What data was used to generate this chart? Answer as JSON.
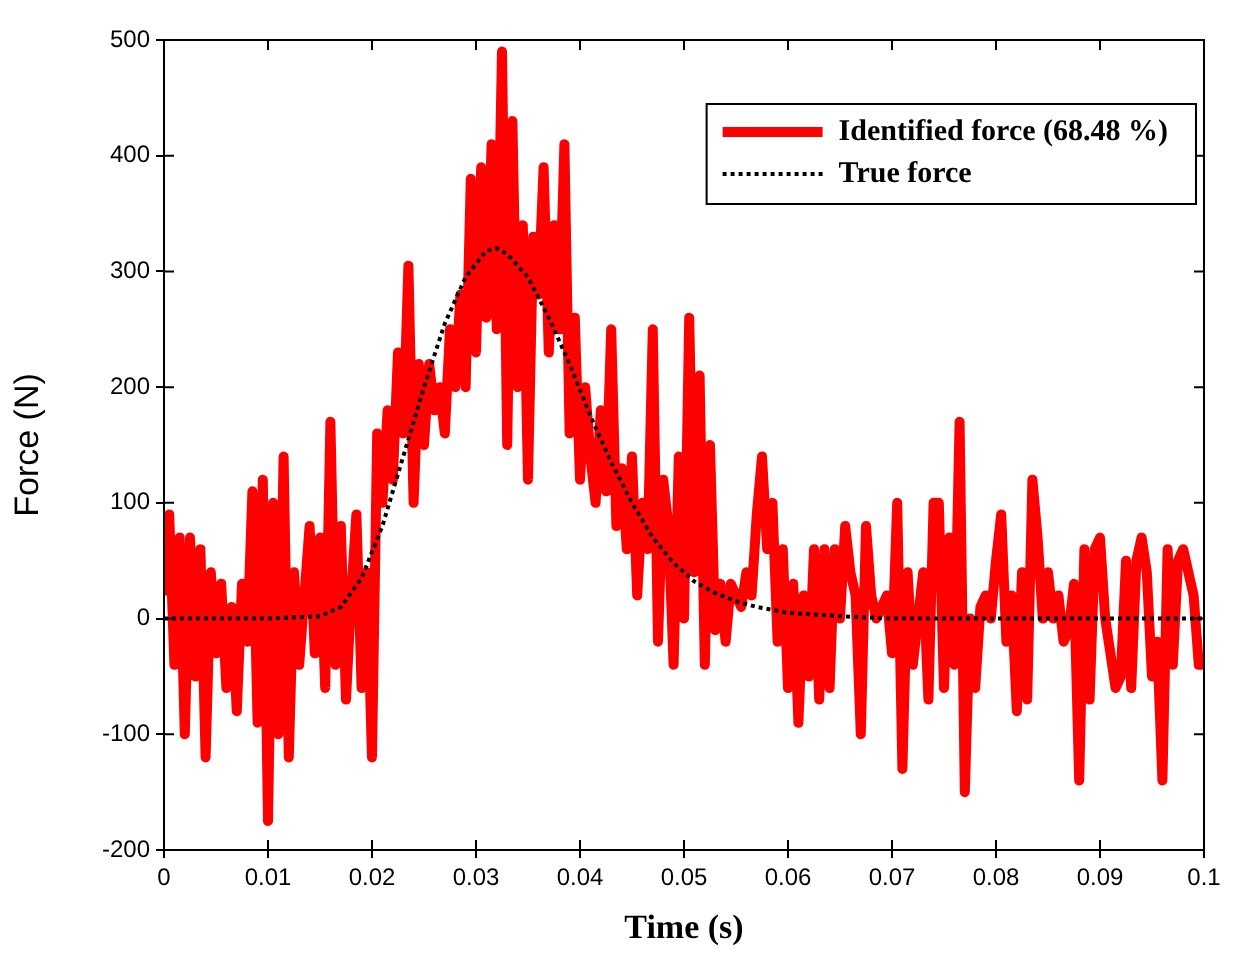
{
  "chart_data": {
    "type": "line",
    "xlabel": "Time (s)",
    "ylabel": "Force (N)",
    "legend": "top right",
    "xlim": [
      0,
      0.1
    ],
    "xticks": [
      0,
      0.01,
      0.02,
      0.03,
      0.04,
      0.05,
      0.06,
      0.07,
      0.08,
      0.09,
      0.1
    ],
    "ylim": [
      -200,
      500
    ],
    "yticks": [
      -200,
      -100,
      0,
      100,
      200,
      300,
      400,
      500
    ],
    "series": [
      {
        "name": "Identified force (68.48 %)",
        "color": "#ff0000",
        "line_style": "solid",
        "x": [
          0,
          0.0005,
          0.001,
          0.0015,
          0.002,
          0.0025,
          0.003,
          0.0035,
          0.004,
          0.0045,
          0.005,
          0.0055,
          0.006,
          0.0065,
          0.007,
          0.0075,
          0.008,
          0.0085,
          0.009,
          0.0095,
          0.01,
          0.0105,
          0.011,
          0.0115,
          0.012,
          0.0125,
          0.013,
          0.0135,
          0.014,
          0.0145,
          0.015,
          0.0155,
          0.016,
          0.0165,
          0.017,
          0.0175,
          0.018,
          0.0185,
          0.019,
          0.0195,
          0.02,
          0.0205,
          0.021,
          0.0215,
          0.022,
          0.0225,
          0.023,
          0.0235,
          0.024,
          0.0245,
          0.025,
          0.0255,
          0.026,
          0.0265,
          0.027,
          0.0275,
          0.028,
          0.0285,
          0.029,
          0.0295,
          0.03,
          0.0305,
          0.031,
          0.0315,
          0.032,
          0.0325,
          0.033,
          0.0335,
          0.034,
          0.0345,
          0.035,
          0.0355,
          0.036,
          0.0365,
          0.037,
          0.0375,
          0.038,
          0.0385,
          0.039,
          0.0395,
          0.04,
          0.0405,
          0.041,
          0.0415,
          0.042,
          0.0425,
          0.043,
          0.0435,
          0.044,
          0.0445,
          0.045,
          0.0455,
          0.046,
          0.0465,
          0.047,
          0.0475,
          0.048,
          0.0485,
          0.049,
          0.0495,
          0.05,
          0.0505,
          0.051,
          0.0515,
          0.052,
          0.0525,
          0.053,
          0.0535,
          0.054,
          0.0545,
          0.055,
          0.0555,
          0.056,
          0.0565,
          0.057,
          0.0575,
          0.058,
          0.0585,
          0.059,
          0.0595,
          0.06,
          0.0605,
          0.061,
          0.0615,
          0.062,
          0.0625,
          0.063,
          0.0635,
          0.064,
          0.0645,
          0.065,
          0.0655,
          0.066,
          0.0665,
          0.067,
          0.0675,
          0.068,
          0.0685,
          0.069,
          0.0695,
          0.07,
          0.0705,
          0.071,
          0.0715,
          0.072,
          0.0725,
          0.073,
          0.0735,
          0.074,
          0.0745,
          0.075,
          0.0755,
          0.076,
          0.0765,
          0.077,
          0.0775,
          0.078,
          0.0785,
          0.079,
          0.0795,
          0.08,
          0.0805,
          0.081,
          0.0815,
          0.082,
          0.0825,
          0.083,
          0.0835,
          0.084,
          0.0845,
          0.085,
          0.0855,
          0.086,
          0.0865,
          0.087,
          0.0875,
          0.088,
          0.0885,
          0.089,
          0.0895,
          0.09,
          0.0905,
          0.091,
          0.0915,
          0.092,
          0.0925,
          0.093,
          0.0935,
          0.094,
          0.0945,
          0.095,
          0.0955,
          0.096,
          0.0965,
          0.097,
          0.0975,
          0.098,
          0.0985,
          0.099,
          0.0995,
          0.1
        ],
        "values": [
          20,
          90,
          -40,
          70,
          -100,
          70,
          -50,
          60,
          -120,
          40,
          -30,
          30,
          -60,
          10,
          -80,
          30,
          -20,
          110,
          -90,
          120,
          -175,
          100,
          -100,
          140,
          -120,
          40,
          -40,
          20,
          80,
          -30,
          70,
          -60,
          170,
          -40,
          80,
          -70,
          20,
          90,
          -60,
          40,
          -120,
          160,
          100,
          180,
          120,
          230,
          160,
          305,
          100,
          220,
          150,
          220,
          180,
          200,
          160,
          250,
          200,
          280,
          200,
          380,
          230,
          390,
          260,
          410,
          250,
          490,
          150,
          430,
          200,
          340,
          120,
          330,
          280,
          390,
          230,
          340,
          250,
          410,
          160,
          260,
          120,
          200,
          140,
          100,
          180,
          110,
          250,
          80,
          130,
          60,
          140,
          20,
          100,
          60,
          250,
          -20,
          120,
          80,
          -40,
          140,
          0,
          260,
          40,
          210,
          -40,
          150,
          -10,
          30,
          -20,
          30,
          20,
          10,
          40,
          20,
          90,
          140,
          60,
          100,
          -20,
          60,
          -60,
          30,
          -90,
          20,
          -50,
          60,
          -70,
          60,
          -60,
          60,
          0,
          80,
          40,
          20,
          -100,
          80,
          20,
          0,
          10,
          20,
          -30,
          100,
          -130,
          40,
          -40,
          0,
          40,
          -70,
          100,
          100,
          -60,
          70,
          -40,
          170,
          -150,
          0,
          -60,
          10,
          20,
          0,
          50,
          90,
          -20,
          20,
          -80,
          40,
          -70,
          120,
          70,
          0,
          40,
          0,
          20,
          -20,
          -10,
          30,
          -140,
          60,
          -70,
          60,
          70,
          0,
          -30,
          -60,
          -50,
          50,
          -60,
          50,
          70,
          40,
          -50,
          -20,
          -140,
          60,
          -40,
          50,
          60,
          40,
          20,
          -40,
          -40
        ]
      },
      {
        "name": "True force",
        "color": "#000000",
        "line_style": "dotted",
        "x": [
          0,
          0.01,
          0.015,
          0.017,
          0.019,
          0.021,
          0.023,
          0.025,
          0.027,
          0.029,
          0.031,
          0.032,
          0.033,
          0.035,
          0.037,
          0.039,
          0.041,
          0.043,
          0.045,
          0.047,
          0.049,
          0.051,
          0.053,
          0.055,
          0.057,
          0.06,
          0.065,
          0.07,
          0.1
        ],
        "values": [
          0,
          0,
          2,
          10,
          35,
          80,
          140,
          200,
          255,
          295,
          318,
          320,
          315,
          295,
          260,
          220,
          175,
          135,
          100,
          70,
          48,
          32,
          22,
          15,
          10,
          5,
          2,
          0,
          0
        ]
      }
    ]
  }
}
